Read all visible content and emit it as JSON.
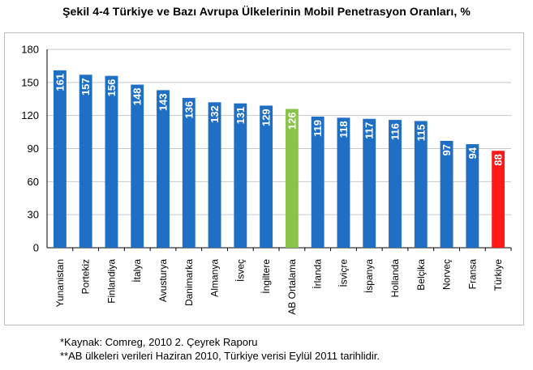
{
  "title": "Şekil 4-4 Türkiye ve Bazı Avrupa Ülkelerinin Mobil Penetrasyon Oranları, %",
  "notes": {
    "source": "*Kaynak: Comreg, 2010 2. Çeyrek Raporu",
    "footnote": "**AB ülkeleri verileri Haziran 2010, Türkiye verisi Eylül 2011 tarihlidir."
  },
  "colors": {
    "default": "#1f6fc5",
    "ab_average": "#8bc34a",
    "turkiye": "#ff1a1a"
  },
  "chart_data": {
    "type": "bar",
    "title": "Şekil 4-4 Türkiye ve Bazı Avrupa Ülkelerinin Mobil Penetrasyon Oranları, %",
    "xlabel": "",
    "ylabel": "",
    "ylim": [
      0,
      180
    ],
    "yticks": [
      0,
      30,
      60,
      90,
      120,
      150,
      180
    ],
    "grid": true,
    "legend": "none",
    "categories": [
      "Yunanistan",
      "Portekiz",
      "Finlandiya",
      "İtalya",
      "Avusturya",
      "Danimarka",
      "Almanya",
      "İsveç",
      "İngiltere",
      "AB Ortalama",
      "İrlanda",
      "İsviçre",
      "İspanya",
      "Hollanda",
      "Belçika",
      "Norveç",
      "Fransa",
      "Türkiye"
    ],
    "values": [
      161,
      157,
      156,
      148,
      143,
      136,
      132,
      131,
      129,
      126,
      119,
      118,
      117,
      116,
      115,
      97,
      94,
      88
    ],
    "bar_colors": [
      "#1f6fc5",
      "#1f6fc5",
      "#1f6fc5",
      "#1f6fc5",
      "#1f6fc5",
      "#1f6fc5",
      "#1f6fc5",
      "#1f6fc5",
      "#1f6fc5",
      "#8bc34a",
      "#1f6fc5",
      "#1f6fc5",
      "#1f6fc5",
      "#1f6fc5",
      "#1f6fc5",
      "#1f6fc5",
      "#1f6fc5",
      "#ff1a1a"
    ],
    "data_labels": true
  }
}
